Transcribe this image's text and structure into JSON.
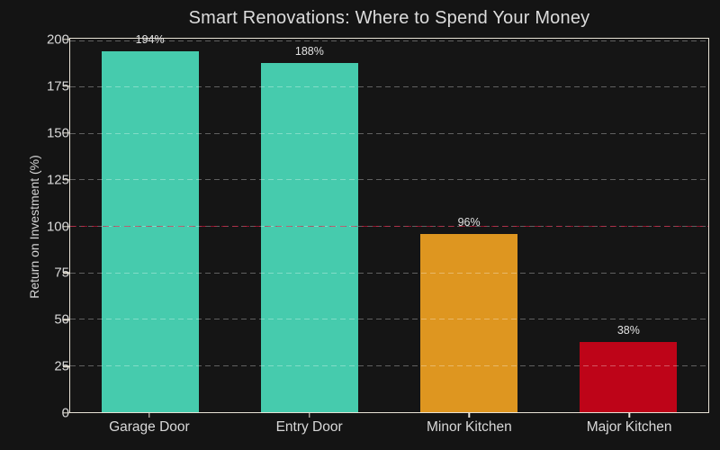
{
  "chart": {
    "title": "Smart Renovations: Where to Spend Your Money",
    "y_axis_label": "Return on Investment (%)"
  },
  "chart_data": {
    "type": "bar",
    "title": "Smart Renovations: Where to Spend Your Money",
    "xlabel": "",
    "ylabel": "Return on Investment (%)",
    "categories": [
      "Garage Door",
      "Entry Door",
      "Minor Kitchen",
      "Major Kitchen"
    ],
    "values": [
      194,
      188,
      96,
      38
    ],
    "bar_labels": [
      "194%",
      "188%",
      "96%",
      "38%"
    ],
    "bar_colors": [
      "#46cbad",
      "#46cbad",
      "#de9620",
      "#be0418"
    ],
    "ylim": [
      0,
      201
    ],
    "yticks": [
      0,
      25,
      50,
      75,
      100,
      125,
      150,
      175,
      200
    ],
    "grid": "horizontal-dashed",
    "grid_color": "rgba(255,255,255,0.32)",
    "reference_line": {
      "y": 100,
      "color": "#dc143c",
      "style": "dashed"
    },
    "background_color": "#141414",
    "text_color": "#dcdcdc",
    "legend": "none"
  }
}
